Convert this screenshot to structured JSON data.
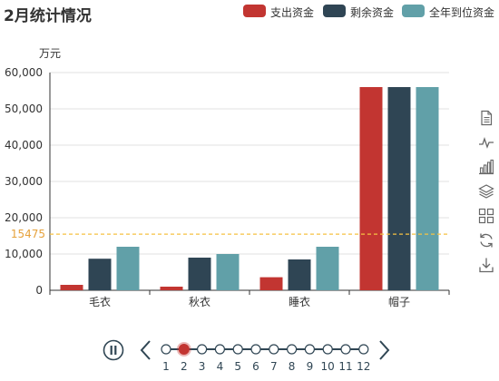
{
  "title": "2月统计情况",
  "legend": [
    {
      "name": "支出资金",
      "color": "#c23531"
    },
    {
      "name": "剩余资金",
      "color": "#2f4554"
    },
    {
      "name": "全年到位资金",
      "color": "#61a0a8"
    }
  ],
  "chart_data": {
    "type": "bar",
    "title": "2月统计情况",
    "ylabel": "万元",
    "ylim": [
      0,
      60000
    ],
    "yticks": [
      "0",
      "10,000",
      "20,000",
      "30,000",
      "40,000",
      "50,000",
      "60,000"
    ],
    "categories": [
      "毛衣",
      "秋衣",
      "睡衣",
      "帽子"
    ],
    "series": [
      {
        "name": "支出资金",
        "color": "#c23531",
        "values": [
          1500,
          1000,
          3600,
          56000
        ]
      },
      {
        "name": "剩余资金",
        "color": "#2f4554",
        "values": [
          8700,
          9000,
          8500,
          56000
        ]
      },
      {
        "name": "全年到位资金",
        "color": "#61a0a8",
        "values": [
          12000,
          10000,
          12000,
          56000
        ]
      }
    ],
    "markline": {
      "value": 15475,
      "label": "15475",
      "color": "#f5c242"
    },
    "grid": true,
    "legend_position": "top-right"
  },
  "toolbox": {
    "icons": [
      "data-view-icon",
      "line-chart-icon",
      "bar-chart-icon",
      "stack-icon",
      "tiled-icon",
      "restore-icon",
      "save-image-icon"
    ],
    "color": "#666666"
  },
  "timeline": {
    "labels": [
      "1",
      "2",
      "3",
      "4",
      "5",
      "6",
      "7",
      "8",
      "9",
      "10",
      "11",
      "12"
    ],
    "current": 2,
    "accent": "#c23531",
    "line_color": "#304654"
  }
}
